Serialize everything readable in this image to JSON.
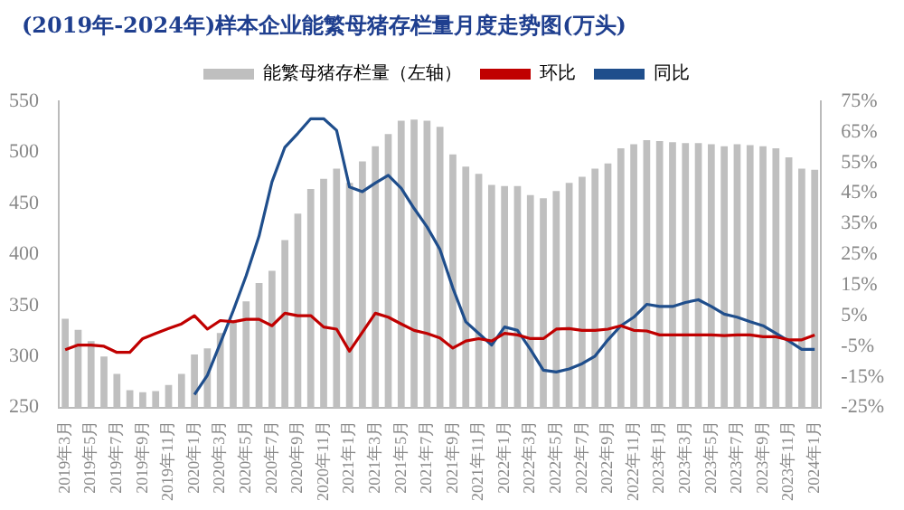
{
  "chart_data": {
    "type": "bar",
    "title": "(2019年-2024年)样本企业能繁母猪存栏量月度走势图(万头)",
    "categories": [
      "2019年3月",
      null,
      "2019年5月",
      null,
      "2019年7月",
      null,
      "2019年9月",
      null,
      "2019年11月",
      null,
      "2020年1月",
      null,
      "2020年3月",
      null,
      "2020年5月",
      null,
      "2020年7月",
      null,
      "2020年9月",
      null,
      "2020年11月",
      null,
      "2021年1月",
      null,
      "2021年3月",
      null,
      "2021年5月",
      null,
      "2021年7月",
      null,
      "2021年9月",
      null,
      "2021年11月",
      null,
      "2022年1月",
      null,
      "2022年3月",
      null,
      "2022年5月",
      null,
      "2022年7月",
      null,
      "2022年9月",
      null,
      "2022年11月",
      null,
      "2023年1月",
      null,
      "2023年3月",
      null,
      "2023年5月",
      null,
      "2023年7月",
      null,
      "2023年9月",
      null,
      "2023年11月",
      null,
      "2024年1月"
    ],
    "series": [
      {
        "name": "能繁母猪存栏量（左轴）",
        "color": "#bfbfbf",
        "values": [
          337,
          326,
          315,
          300,
          283,
          267,
          265,
          266,
          272,
          283,
          302,
          308,
          323,
          335,
          354,
          372,
          384,
          414,
          440,
          464,
          474,
          484,
          470,
          491,
          506,
          518,
          531,
          532,
          531,
          525,
          498,
          486,
          479,
          468,
          467,
          467,
          458,
          455,
          462,
          470,
          476,
          484,
          489,
          504,
          508,
          512,
          511,
          510,
          509,
          509,
          508,
          506,
          508,
          507,
          506,
          504,
          495,
          484,
          483
        ]
      },
      {
        "name": "环比",
        "type": "line",
        "axis": "y2",
        "color": "#c00000",
        "values": [
          -6.1,
          -4.6,
          -4.6,
          -5,
          -7,
          -7,
          -2.5,
          -0.8,
          0.8,
          2.3,
          5,
          0.6,
          3.4,
          3,
          3.8,
          3.8,
          1.7,
          5.8,
          5,
          5,
          1.3,
          0.6,
          -6.6,
          -0.4,
          5.8,
          4.5,
          2.3,
          0.2,
          -0.8,
          -2.3,
          -5.6,
          -3.3,
          -2.5,
          -3.3,
          -0.8,
          -1.3,
          -2.5,
          -2.5,
          0.6,
          0.8,
          0.2,
          0.2,
          0.6,
          1.7,
          0.2,
          0,
          -1.3,
          -1.3,
          -1.3,
          -1.3,
          -1.3,
          -1.5,
          -1.3,
          -1.3,
          -1.9,
          -1.9,
          -2.9,
          -2.9,
          -1.3
        ]
      },
      {
        "name": "同比",
        "type": "line",
        "axis": "y2",
        "color": "#1f4e8c",
        "values": [
          null,
          null,
          null,
          null,
          null,
          null,
          null,
          null,
          null,
          null,
          -20.8,
          -14.5,
          -4,
          6.6,
          18,
          31,
          48.7,
          60,
          64.5,
          69.3,
          69.3,
          65.5,
          47,
          45.5,
          48.3,
          50.8,
          46.6,
          40,
          34,
          26.6,
          14,
          3,
          -0.8,
          -4.6,
          1.3,
          0.2,
          -6,
          -12.8,
          -13.4,
          -12.4,
          -10.7,
          -8.2,
          -2.9,
          1.7,
          4.5,
          8.7,
          8,
          8,
          9.3,
          10.2,
          8,
          5.5,
          4.5,
          3,
          1.7,
          -0.8,
          -3.3,
          -6,
          -6
        ]
      }
    ],
    "ylim": [
      250,
      550
    ],
    "yticks": [
      250,
      300,
      350,
      400,
      450,
      500,
      550
    ],
    "y2lim": [
      -25,
      75
    ],
    "y2ticks": [
      {
        "value": -25,
        "label": "-25%"
      },
      {
        "value": -15,
        "label": "-15%"
      },
      {
        "value": -5,
        "label": "-5%"
      },
      {
        "value": 5,
        "label": "5%"
      },
      {
        "value": 15,
        "label": "15%"
      },
      {
        "value": 25,
        "label": "25%"
      },
      {
        "value": 35,
        "label": "35%"
      },
      {
        "value": 45,
        "label": "45%"
      },
      {
        "value": 55,
        "label": "55%"
      },
      {
        "value": 65,
        "label": "65%"
      },
      {
        "value": 75,
        "label": "75%"
      }
    ],
    "grid": false,
    "legend": "top"
  }
}
